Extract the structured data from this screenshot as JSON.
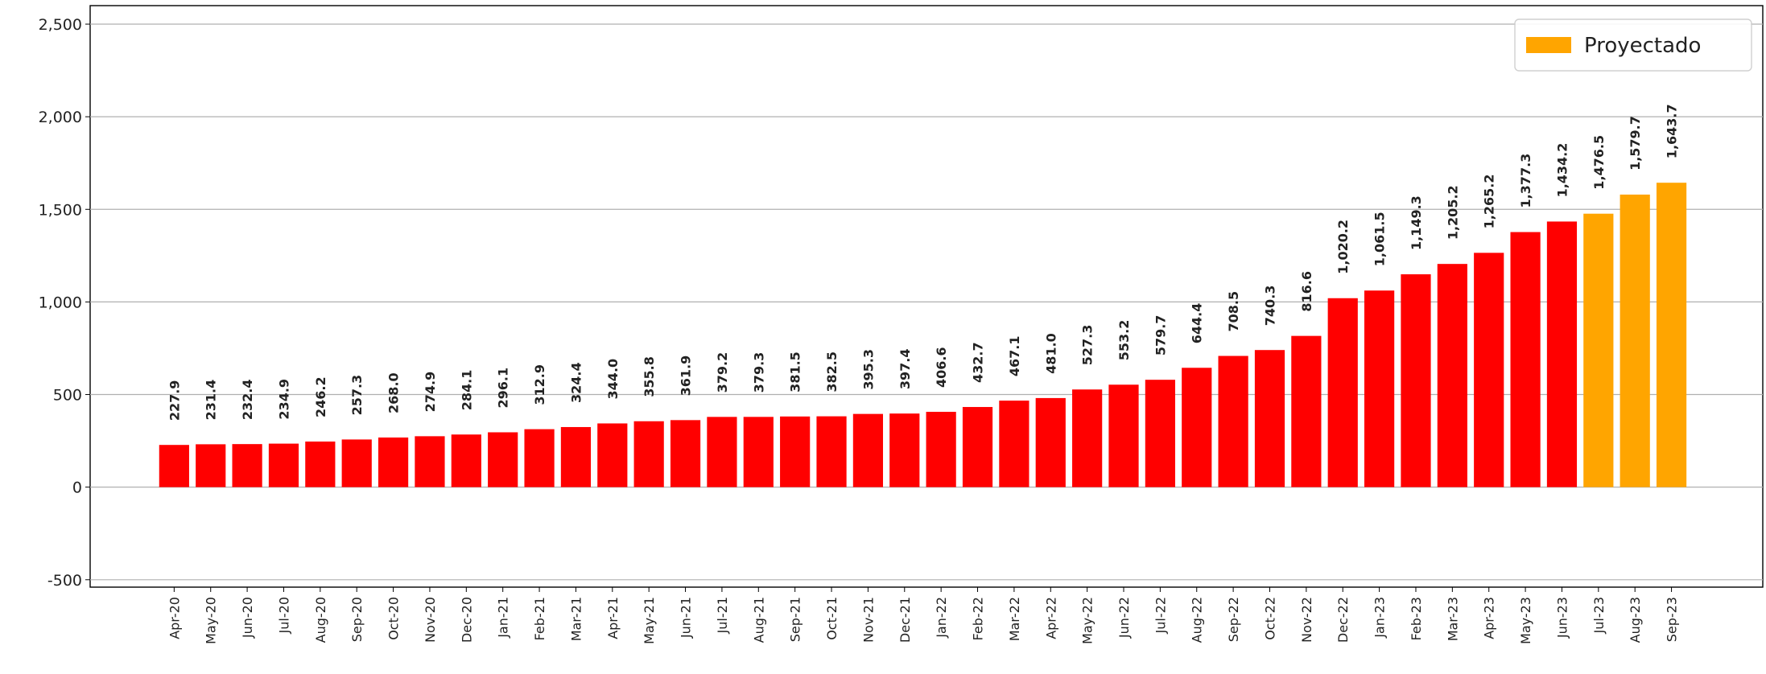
{
  "chart_data": {
    "type": "bar",
    "categories": [
      "Apr-20",
      "May-20",
      "Jun-20",
      "Jul-20",
      "Aug-20",
      "Sep-20",
      "Oct-20",
      "Nov-20",
      "Dec-20",
      "Jan-21",
      "Feb-21",
      "Mar-21",
      "Apr-21",
      "May-21",
      "Jun-21",
      "Jul-21",
      "Aug-21",
      "Sep-21",
      "Oct-21",
      "Nov-21",
      "Dec-21",
      "Jan-22",
      "Feb-22",
      "Mar-22",
      "Apr-22",
      "May-22",
      "Jun-22",
      "Jul-22",
      "Aug-22",
      "Sep-22",
      "Oct-22",
      "Nov-22",
      "Dec-22",
      "Jan-23",
      "Feb-23",
      "Mar-23",
      "Apr-23",
      "May-23",
      "Jun-23",
      "Jul-23",
      "Aug-23",
      "Sep-23"
    ],
    "series": [
      {
        "color": "#ff0000",
        "values": [
          227.9,
          231.4,
          232.4,
          234.9,
          246.2,
          257.3,
          268.0,
          274.9,
          284.1,
          296.1,
          312.9,
          324.4,
          344.0,
          355.8,
          361.9,
          379.2,
          379.3,
          381.5,
          382.5,
          395.3,
          397.4,
          406.6,
          432.7,
          467.1,
          481.0,
          527.3,
          553.2,
          579.7,
          644.4,
          708.5,
          740.3,
          816.6,
          1020.2,
          1061.5,
          1149.3,
          1205.2,
          1265.2,
          1377.3,
          1434.2,
          null,
          null,
          null
        ],
        "value_labels": [
          "227.9",
          "231.4",
          "232.4",
          "234.9",
          "246.2",
          "257.3",
          "268.0",
          "274.9",
          "284.1",
          "296.1",
          "312.9",
          "324.4",
          "344.0",
          "355.8",
          "361.9",
          "379.2",
          "379.3",
          "381.5",
          "382.5",
          "395.3",
          "397.4",
          "406.6",
          "432.7",
          "467.1",
          "481.0",
          "527.3",
          "553.2",
          "579.7",
          "644.4",
          "708.5",
          "740.3",
          "816.6",
          "1,020.2",
          "1,061.5",
          "1,149.3",
          "1,205.2",
          "1,265.2",
          "1,377.3",
          "1,434.2",
          null,
          null,
          null
        ]
      },
      {
        "name": "Proyectado",
        "color": "#ffa500",
        "values": [
          null,
          null,
          null,
          null,
          null,
          null,
          null,
          null,
          null,
          null,
          null,
          null,
          null,
          null,
          null,
          null,
          null,
          null,
          null,
          null,
          null,
          null,
          null,
          null,
          null,
          null,
          null,
          null,
          null,
          null,
          null,
          null,
          null,
          null,
          null,
          null,
          null,
          null,
          null,
          1476.5,
          1579.7,
          1643.7
        ],
        "value_labels": [
          null,
          null,
          null,
          null,
          null,
          null,
          null,
          null,
          null,
          null,
          null,
          null,
          null,
          null,
          null,
          null,
          null,
          null,
          null,
          null,
          null,
          null,
          null,
          null,
          null,
          null,
          null,
          null,
          null,
          null,
          null,
          null,
          null,
          null,
          null,
          null,
          null,
          null,
          null,
          "1,476.5",
          "1,579.7",
          "1,643.7"
        ]
      }
    ],
    "ylim": [
      -540,
      2600
    ],
    "yticks": [
      -500,
      0,
      500,
      {
        "value": 1000,
        "label": "1,000"
      },
      {
        "value": 1500,
        "label": "1,500"
      },
      {
        "value": 2000,
        "label": "2,000"
      },
      {
        "value": 2500,
        "label": "2,500"
      }
    ],
    "grid": true,
    "legend": "upper right"
  }
}
